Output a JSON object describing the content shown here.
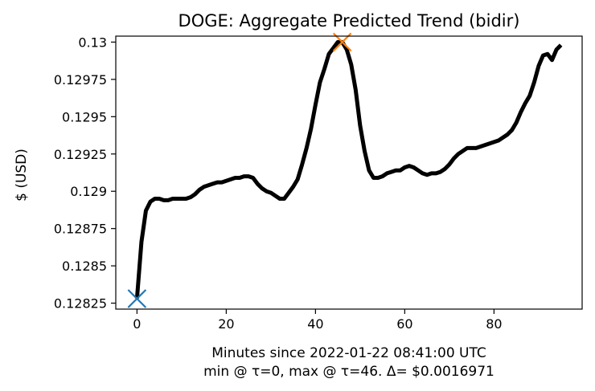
{
  "chart_data": {
    "type": "line",
    "title": "DOGE: Aggregate Predicted Trend (bidir)",
    "xlabel": "Minutes since 2022-01-22 08:41:00 UTC",
    "xlabel2": "min @ τ=0, max @ τ=46. Δ= $0.0016971",
    "ylabel": "$ (USD)",
    "xlim": [
      -4.75,
      99.75
    ],
    "ylim": [
      0.12821,
      0.13004
    ],
    "xticks": [
      0,
      20,
      40,
      60,
      80
    ],
    "xtick_labels": [
      "0",
      "20",
      "40",
      "60",
      "80"
    ],
    "yticks": [
      0.12825,
      0.1285,
      0.12875,
      0.129,
      0.12925,
      0.1295,
      0.12975,
      0.13
    ],
    "ytick_labels": [
      "0.12825",
      "0.1285",
      "0.12875",
      "0.129",
      "0.12925",
      "0.1295",
      "0.12975",
      "0.13"
    ],
    "grid": false,
    "series": [
      {
        "color": "#000000",
        "x": [
          0,
          1,
          2,
          3,
          4,
          5,
          6,
          7,
          8,
          9,
          10,
          11,
          12,
          13,
          14,
          15,
          16,
          17,
          18,
          19,
          20,
          21,
          22,
          23,
          24,
          25,
          26,
          27,
          28,
          29,
          30,
          31,
          32,
          33,
          34,
          35,
          36,
          37,
          38,
          39,
          40,
          41,
          42,
          43,
          44,
          45,
          46,
          47,
          48,
          49,
          50,
          51,
          52,
          53,
          54,
          55,
          56,
          57,
          58,
          59,
          60,
          61,
          62,
          63,
          64,
          65,
          66,
          67,
          68,
          69,
          70,
          71,
          72,
          73,
          74,
          75,
          76,
          77,
          78,
          79,
          80,
          81,
          82,
          83,
          84,
          85,
          86,
          87,
          88,
          89,
          90,
          91,
          92,
          93,
          94,
          95
        ],
        "y": [
          0.12828,
          0.12866,
          0.12887,
          0.12893,
          0.12895,
          0.12895,
          0.12894,
          0.12894,
          0.12895,
          0.12895,
          0.12895,
          0.12895,
          0.12896,
          0.12898,
          0.12901,
          0.12903,
          0.12904,
          0.12905,
          0.12906,
          0.12906,
          0.12907,
          0.12908,
          0.12909,
          0.12909,
          0.1291,
          0.1291,
          0.12909,
          0.12905,
          0.12902,
          0.129,
          0.12899,
          0.12897,
          0.12895,
          0.12895,
          0.12899,
          0.12903,
          0.12908,
          0.12918,
          0.12929,
          0.12942,
          0.12958,
          0.12973,
          0.12982,
          0.12992,
          0.12996,
          0.13,
          0.13,
          0.12995,
          0.12985,
          0.12968,
          0.12944,
          0.12927,
          0.12914,
          0.12909,
          0.12909,
          0.1291,
          0.12912,
          0.12913,
          0.12914,
          0.12914,
          0.12916,
          0.12917,
          0.12916,
          0.12914,
          0.12912,
          0.12911,
          0.12912,
          0.12912,
          0.12913,
          0.12915,
          0.12918,
          0.12922,
          0.12925,
          0.12927,
          0.12929,
          0.12929,
          0.12929,
          0.1293,
          0.12931,
          0.12932,
          0.12933,
          0.12934,
          0.12936,
          0.12938,
          0.12941,
          0.12946,
          0.12953,
          0.12959,
          0.12964,
          0.12973,
          0.12984,
          0.12991,
          0.12992,
          0.12988,
          0.12995,
          0.12998
        ]
      }
    ],
    "markers": [
      {
        "x": 0,
        "y": 0.12828,
        "symbol": "x",
        "color": "#1f77b4"
      },
      {
        "x": 46,
        "y": 0.13,
        "symbol": "x",
        "color": "#ff7f0e"
      }
    ]
  }
}
